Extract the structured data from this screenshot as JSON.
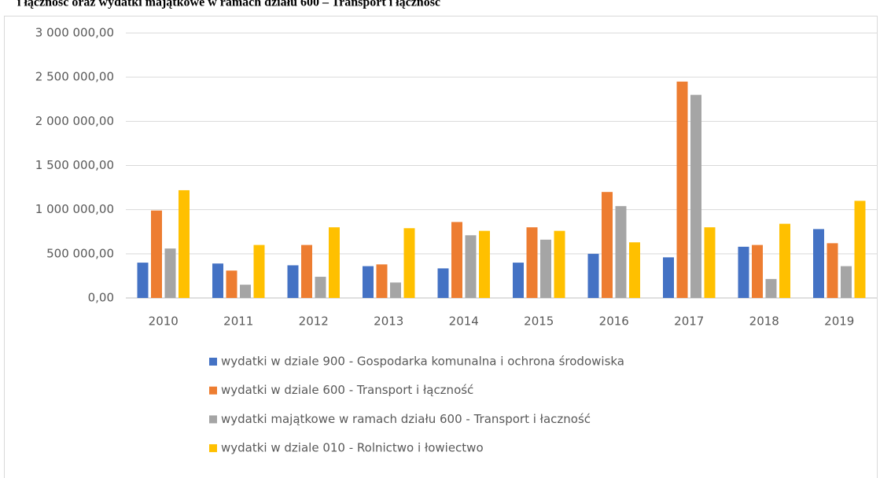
{
  "chart_data": {
    "type": "bar",
    "title": "i łączność oraz wydatki majątkowe w ramach działu 600 – Transport i łączność",
    "categories": [
      "2010",
      "2011",
      "2012",
      "2013",
      "2014",
      "2015",
      "2016",
      "2017",
      "2018",
      "2019"
    ],
    "series": [
      {
        "name": "wydatki w dziale 900 - Gospodarka komunalna i ochrona środowiska",
        "color": "#4472c4",
        "values": [
          400000,
          390000,
          370000,
          360000,
          335000,
          400000,
          500000,
          460000,
          580000,
          780000
        ]
      },
      {
        "name": "wydatki w dziale 600 - Transport i łączność",
        "color": "#ed7d31",
        "values": [
          990000,
          310000,
          600000,
          380000,
          860000,
          800000,
          1200000,
          2450000,
          600000,
          620000
        ]
      },
      {
        "name": "wydatki majątkowe w ramach działu 600 - Transport i łaczność",
        "color": "#a5a5a5",
        "values": [
          560000,
          150000,
          240000,
          175000,
          710000,
          660000,
          1040000,
          2300000,
          215000,
          360000
        ]
      },
      {
        "name": "wydatki w dziale 010 - Rolnictwo i łowiectwo",
        "color": "#ffc000",
        "values": [
          1220000,
          600000,
          800000,
          790000,
          760000,
          760000,
          630000,
          800000,
          840000,
          1100000
        ]
      }
    ],
    "ylim": [
      0,
      3000000
    ],
    "yticks": [
      {
        "value": 0,
        "label": "0,00"
      },
      {
        "value": 500000,
        "label": "500 000,00"
      },
      {
        "value": 1000000,
        "label": "1 000 000,00"
      },
      {
        "value": 1500000,
        "label": "1 500 000,00"
      },
      {
        "value": 2000000,
        "label": "2 000 000,00"
      },
      {
        "value": 2500000,
        "label": "2 500 000,00"
      },
      {
        "value": 3000000,
        "label": "3 000 000,00"
      }
    ],
    "grid": true,
    "legend": "bottom"
  }
}
